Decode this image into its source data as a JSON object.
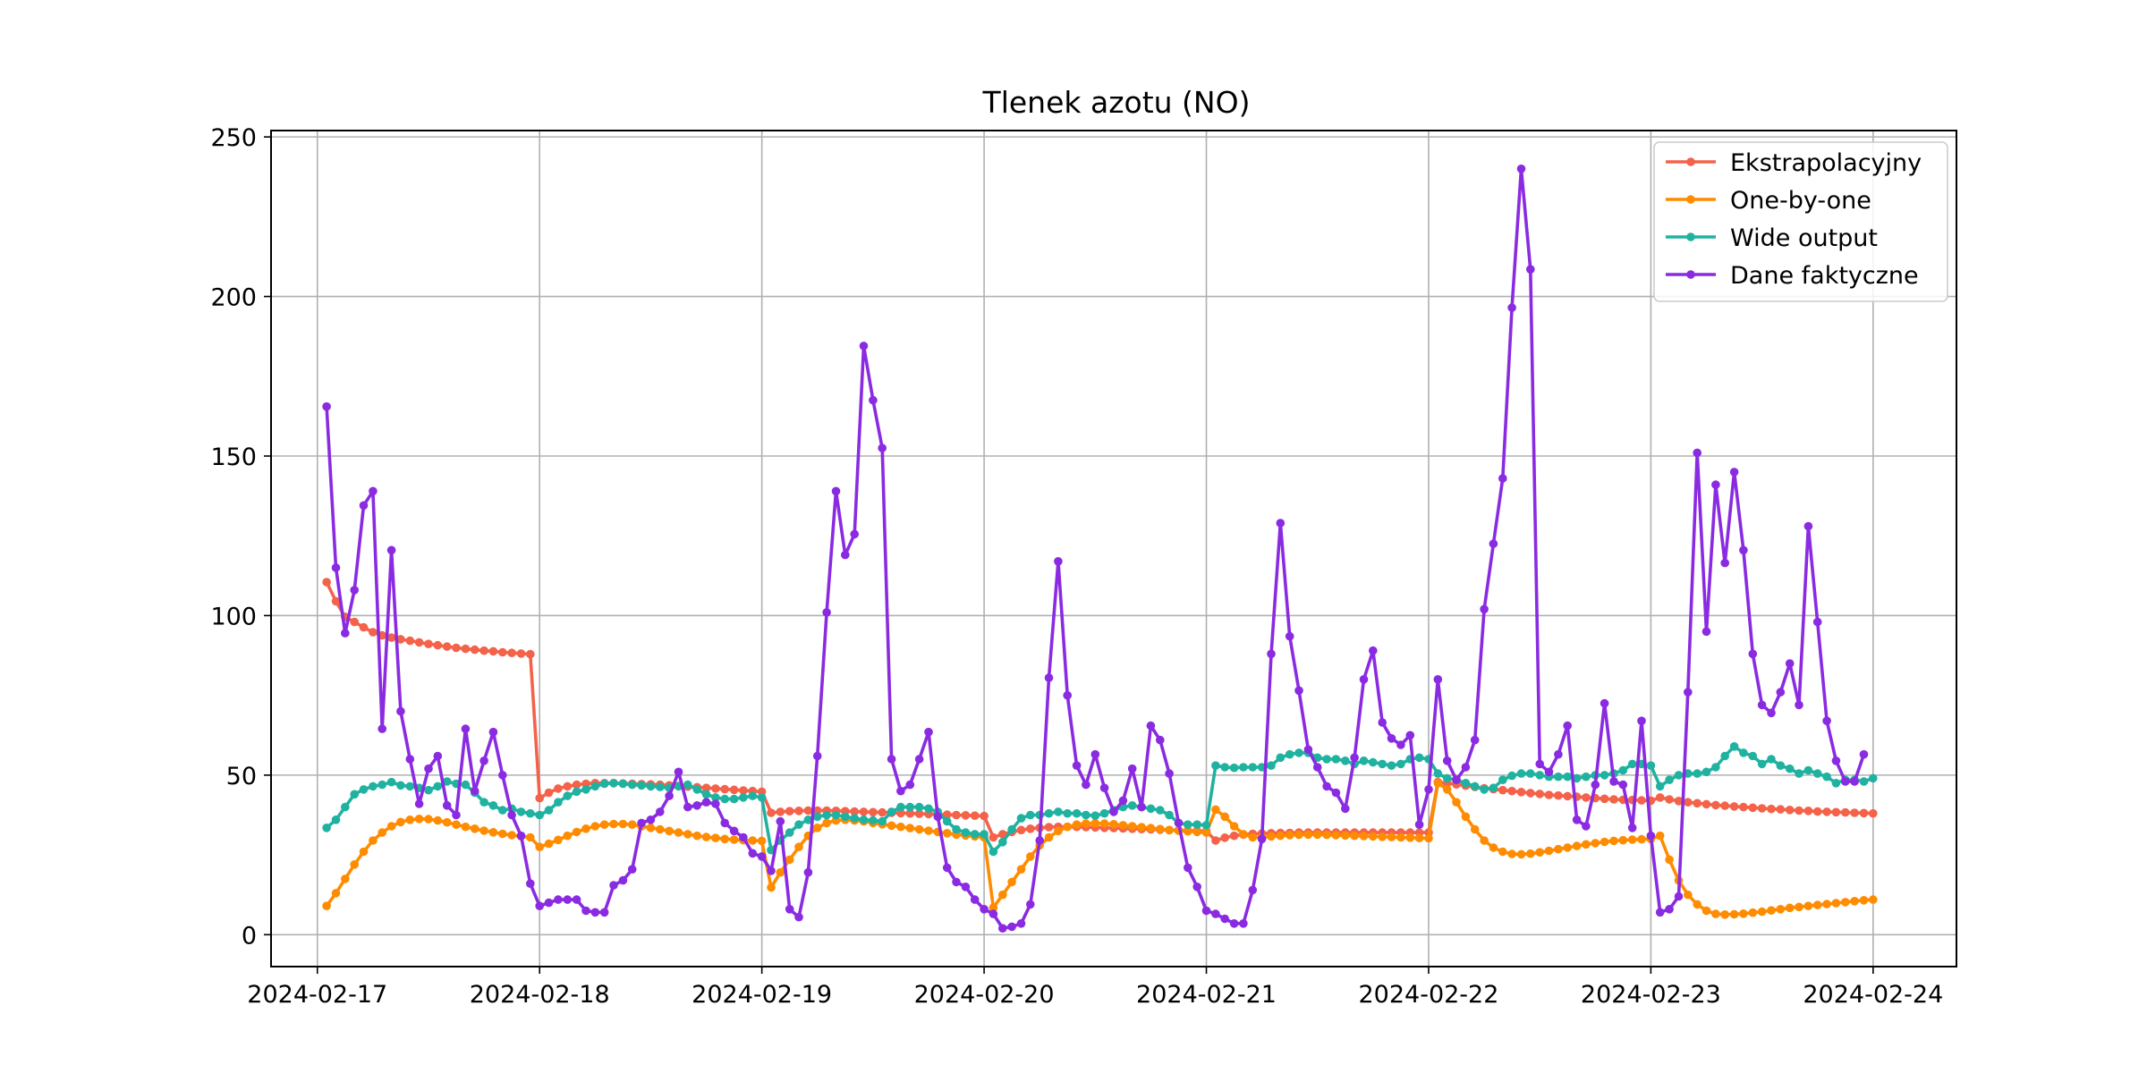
{
  "chart_data": {
    "type": "line",
    "title": "Tlenek azotu (NO)",
    "xlabel": "",
    "ylabel": "",
    "x_start": "2024-02-17T01:00",
    "x_step_hours": 1,
    "xlim": [
      "2024-02-16T19:00",
      "2024-02-24T09:00"
    ],
    "ylim": [
      -10,
      252
    ],
    "x_ticks": [
      "2024-02-17",
      "2024-02-18",
      "2024-02-19",
      "2024-02-20",
      "2024-02-21",
      "2024-02-22",
      "2024-02-23",
      "2024-02-24"
    ],
    "y_ticks": [
      0,
      50,
      100,
      150,
      200,
      250
    ],
    "grid": true,
    "legend_position": "top-right",
    "series": [
      {
        "name": "Ekstrapolacyjny",
        "color": "#f4624a",
        "values": [
          110.5,
          104.5,
          99.6,
          98.0,
          96.3,
          94.8,
          93.8,
          93.1,
          92.6,
          92.1,
          91.6,
          91.1,
          90.7,
          90.3,
          89.9,
          89.6,
          89.3,
          89.0,
          88.8,
          88.5,
          88.3,
          88.1,
          87.9,
          42.8,
          44.5,
          45.8,
          46.5,
          47.0,
          47.3,
          47.5,
          47.5,
          47.5,
          47.4,
          47.3,
          47.2,
          47.1,
          47.0,
          46.8,
          46.6,
          46.4,
          46.2,
          46.0,
          45.8,
          45.6,
          45.4,
          45.2,
          45.0,
          44.8,
          38.2,
          38.5,
          38.7,
          38.8,
          38.9,
          38.9,
          38.9,
          38.8,
          38.7,
          38.6,
          38.5,
          38.4,
          38.3,
          38.2,
          38.1,
          38.0,
          37.9,
          37.8,
          37.7,
          37.6,
          37.5,
          37.4,
          37.3,
          37.2,
          30.5,
          31.5,
          32.2,
          32.8,
          33.2,
          33.5,
          33.7,
          33.8,
          33.8,
          33.8,
          33.7,
          33.6,
          33.5,
          33.4,
          33.3,
          33.2,
          33.1,
          33.0,
          32.9,
          32.8,
          32.7,
          32.6,
          32.5,
          32.4,
          29.5,
          30.4,
          31.0,
          31.4,
          31.6,
          31.7,
          31.8,
          31.9,
          31.9,
          32.0,
          32.0,
          32.0,
          32.0,
          32.0,
          32.0,
          32.0,
          32.0,
          32.0,
          32.0,
          32.0,
          32.0,
          32.0,
          32.0,
          32.0,
          47.8,
          47.5,
          47.1,
          46.7,
          46.3,
          45.9,
          45.6,
          45.3,
          45.0,
          44.7,
          44.4,
          44.1,
          43.8,
          43.6,
          43.4,
          43.2,
          43.0,
          42.8,
          42.6,
          42.4,
          42.3,
          42.2,
          42.1,
          42.0,
          43.0,
          42.4,
          41.9,
          41.5,
          41.2,
          40.9,
          40.6,
          40.4,
          40.2,
          40.0,
          39.8,
          39.6,
          39.4,
          39.3,
          39.1,
          38.9,
          38.8,
          38.6,
          38.5,
          38.4,
          38.3,
          38.2,
          38.1,
          38.0
        ]
      },
      {
        "name": "One-by-one",
        "color": "#ff8c00",
        "values": [
          9.0,
          13.0,
          17.5,
          22.0,
          26.0,
          29.5,
          32.0,
          34.0,
          35.3,
          36.0,
          36.3,
          36.2,
          35.8,
          35.2,
          34.5,
          33.8,
          33.2,
          32.6,
          32.1,
          31.6,
          31.2,
          30.8,
          30.5,
          27.5,
          28.5,
          29.7,
          31.0,
          32.2,
          33.2,
          34.0,
          34.5,
          34.7,
          34.7,
          34.5,
          34.0,
          33.5,
          33.0,
          32.5,
          32.0,
          31.5,
          31.0,
          30.6,
          30.3,
          30.0,
          29.8,
          29.6,
          29.5,
          29.4,
          14.8,
          19.5,
          23.5,
          27.5,
          31.0,
          33.5,
          35.0,
          35.8,
          36.0,
          35.8,
          35.5,
          35.0,
          34.6,
          34.2,
          33.8,
          33.4,
          33.0,
          32.6,
          32.2,
          31.8,
          31.4,
          31.1,
          30.8,
          30.5,
          8.5,
          12.5,
          16.5,
          20.5,
          24.5,
          28.0,
          30.5,
          32.5,
          33.8,
          34.5,
          34.8,
          34.9,
          34.8,
          34.6,
          34.3,
          34.0,
          33.7,
          33.4,
          33.1,
          32.8,
          32.6,
          32.4,
          32.2,
          32.0,
          39.2,
          37.0,
          34.0,
          31.5,
          30.5,
          30.5,
          30.8,
          31.0,
          31.2,
          31.3,
          31.4,
          31.4,
          31.3,
          31.2,
          31.1,
          31.0,
          30.9,
          30.8,
          30.7,
          30.6,
          30.5,
          30.4,
          30.3,
          30.2,
          47.5,
          45.5,
          41.5,
          37.0,
          33.0,
          29.5,
          27.3,
          26.0,
          25.3,
          25.2,
          25.4,
          25.8,
          26.3,
          26.8,
          27.3,
          27.8,
          28.3,
          28.7,
          29.1,
          29.4,
          29.6,
          29.8,
          29.9,
          30.0,
          31.0,
          23.5,
          17.0,
          12.5,
          9.5,
          7.5,
          6.5,
          6.3,
          6.4,
          6.6,
          6.9,
          7.2,
          7.6,
          8.0,
          8.4,
          8.7,
          9.0,
          9.3,
          9.6,
          9.9,
          10.2,
          10.5,
          10.8,
          11.0
        ]
      },
      {
        "name": "Wide output",
        "color": "#20b2a0",
        "values": [
          33.5,
          36.0,
          40.0,
          44.0,
          45.5,
          46.5,
          47.0,
          47.8,
          46.8,
          46.5,
          46.0,
          45.3,
          46.5,
          48.0,
          47.3,
          47.0,
          44.5,
          41.5,
          40.5,
          39.0,
          39.5,
          38.5,
          38.0,
          37.5,
          39.0,
          41.5,
          43.5,
          44.8,
          45.5,
          46.5,
          47.3,
          47.5,
          47.3,
          47.0,
          46.8,
          46.5,
          46.3,
          46.0,
          46.5,
          47.0,
          45.5,
          44.0,
          43.0,
          42.5,
          42.5,
          43.0,
          43.5,
          43.0,
          26.5,
          29.5,
          32.0,
          34.5,
          36.0,
          37.0,
          37.5,
          37.5,
          37.0,
          36.5,
          36.0,
          35.8,
          35.5,
          38.5,
          40.0,
          40.0,
          40.0,
          39.5,
          38.5,
          35.5,
          33.0,
          32.0,
          31.5,
          31.5,
          26.0,
          29.0,
          33.0,
          36.5,
          37.5,
          37.5,
          38.0,
          38.5,
          38.0,
          38.0,
          37.5,
          37.3,
          38.0,
          39.0,
          40.0,
          40.5,
          40.0,
          39.5,
          39.0,
          37.5,
          35.0,
          34.5,
          34.5,
          34.3,
          53.0,
          52.5,
          52.3,
          52.5,
          52.5,
          52.5,
          53.0,
          55.5,
          56.5,
          57.0,
          57.0,
          55.5,
          55.0,
          55.0,
          54.5,
          53.5,
          54.5,
          54.0,
          53.5,
          53.0,
          53.5,
          55.0,
          55.5,
          55.0,
          50.5,
          49.0,
          48.5,
          47.5,
          46.5,
          45.5,
          46.0,
          48.5,
          49.8,
          50.5,
          50.5,
          50.0,
          49.5,
          49.5,
          49.5,
          49.0,
          49.5,
          50.0,
          50.0,
          50.5,
          51.5,
          53.5,
          53.5,
          53.0,
          46.5,
          48.5,
          50.0,
          50.5,
          50.5,
          51.0,
          52.5,
          56.0,
          59.0,
          57.0,
          56.0,
          53.5,
          55.0,
          53.0,
          52.0,
          50.5,
          51.5,
          50.5,
          49.5,
          47.5,
          48.5,
          48.5,
          48.0,
          49.0
        ]
      },
      {
        "name": "Dane faktyczne",
        "color": "#8a2be2",
        "values": [
          165.5,
          115.0,
          94.5,
          108.0,
          134.5,
          139.0,
          64.5,
          120.5,
          70.0,
          55.0,
          41.0,
          52.0,
          56.0,
          40.5,
          37.5,
          64.5,
          45.0,
          54.5,
          63.5,
          50.0,
          37.5,
          31.0,
          16.0,
          9.0,
          10.0,
          11.0,
          11.0,
          11.0,
          7.5,
          7.0,
          7.0,
          15.5,
          17.0,
          20.5,
          35.0,
          36.0,
          38.5,
          43.5,
          51.0,
          40.0,
          40.5,
          41.5,
          41.0,
          35.0,
          32.5,
          30.5,
          25.5,
          24.5,
          20.0,
          35.5,
          8.0,
          5.5,
          19.5,
          56.0,
          101.0,
          139.0,
          119.0,
          125.5,
          184.5,
          167.5,
          152.5,
          55.0,
          45.0,
          47.0,
          55.0,
          63.5,
          37.0,
          21.0,
          16.5,
          15.0,
          11.0,
          8.0,
          6.5,
          2.0,
          2.5,
          3.5,
          9.5,
          29.5,
          80.5,
          117.0,
          75.0,
          53.0,
          47.0,
          56.5,
          46.0,
          38.5,
          42.0,
          52.0,
          40.0,
          65.5,
          61.0,
          50.5,
          35.0,
          21.0,
          15.0,
          7.5,
          6.5,
          5.0,
          3.5,
          3.5,
          14.0,
          30.0,
          88.0,
          129.0,
          93.5,
          76.5,
          58.0,
          52.5,
          46.5,
          44.5,
          39.5,
          55.5,
          80.0,
          89.0,
          66.5,
          61.5,
          59.5,
          62.5,
          34.5,
          45.5,
          80.0,
          54.5,
          48.5,
          52.5,
          61.0,
          102.0,
          122.5,
          143.0,
          196.5,
          240.0,
          208.5,
          53.5,
          51.0,
          56.5,
          65.5,
          36.0,
          34.0,
          47.0,
          72.5,
          48.0,
          47.0,
          33.5,
          67.0,
          31.0,
          7.0,
          8.0,
          12.0,
          76.0,
          151.0,
          95.0,
          141.0,
          116.5,
          145.0,
          120.5,
          88.0,
          72.0,
          69.5,
          76.0,
          85.0,
          72.0,
          128.0,
          98.0,
          67.0,
          54.5,
          48.0,
          48.0,
          56.5
        ]
      }
    ]
  }
}
